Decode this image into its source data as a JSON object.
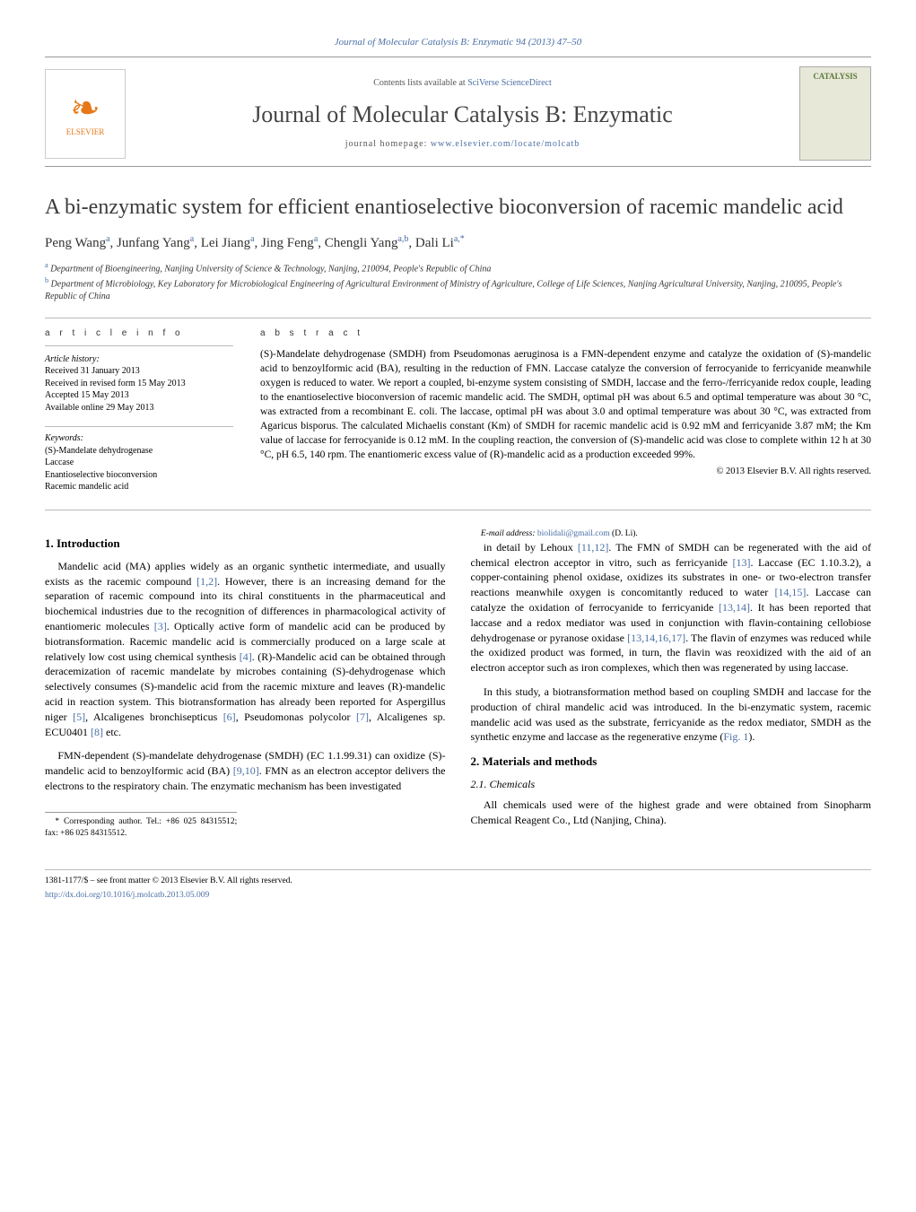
{
  "colors": {
    "link": "#4a6fa5",
    "elsevier_orange": "#e67817",
    "text": "#000000",
    "heading_gray": "#3a3a3a",
    "rule": "#bbbbbb"
  },
  "typography": {
    "body_font": "Georgia, 'Times New Roman', serif",
    "title_fontsize_pt": 18,
    "journal_name_fontsize_pt": 20,
    "body_fontsize_pt": 9,
    "abstract_fontsize_pt": 8.5
  },
  "header": {
    "citation": "Journal of Molecular Catalysis B: Enzymatic 94 (2013) 47–50",
    "contents_prefix": "Contents lists available at ",
    "contents_link": "SciVerse ScienceDirect",
    "journal_name": "Journal of Molecular Catalysis B: Enzymatic",
    "homepage_prefix": "journal homepage: ",
    "homepage_link": "www.elsevier.com/locate/molcatb",
    "publisher_logo_label": "ELSEVIER",
    "cover_label": "CATALYSIS"
  },
  "article": {
    "title": "A bi-enzymatic system for efficient enantioselective bioconversion of racemic mandelic acid",
    "authors_html": "Peng Wang<sup>a</sup>, Junfang Yang<sup>a</sup>, Lei Jiang<sup>a</sup>, Jing Feng<sup>a</sup>, Chengli Yang<sup>a,b</sup>, Dali Li<sup>a,*</sup>",
    "affiliations": [
      "a Department of Bioengineering, Nanjing University of Science & Technology, Nanjing, 210094, People's Republic of China",
      "b Department of Microbiology, Key Laboratory for Microbiological Engineering of Agricultural Environment of Ministry of Agriculture, College of Life Sciences, Nanjing Agricultural University, Nanjing, 210095, People's Republic of China"
    ]
  },
  "info": {
    "heading": "a r t i c l e   i n f o",
    "history_label": "Article history:",
    "history": [
      "Received 31 January 2013",
      "Received in revised form 15 May 2013",
      "Accepted 15 May 2013",
      "Available online 29 May 2013"
    ],
    "keywords_label": "Keywords:",
    "keywords": [
      "(S)-Mandelate dehydrogenase",
      "Laccase",
      "Enantioselective bioconversion",
      "Racemic mandelic acid"
    ]
  },
  "abstract": {
    "heading": "a b s t r a c t",
    "text": "(S)-Mandelate dehydrogenase (SMDH) from Pseudomonas aeruginosa is a FMN-dependent enzyme and catalyze the oxidation of (S)-mandelic acid to benzoylformic acid (BA), resulting in the reduction of FMN. Laccase catalyze the conversion of ferrocyanide to ferricyanide meanwhile oxygen is reduced to water. We report a coupled, bi-enzyme system consisting of SMDH, laccase and the ferro-/ferricyanide redox couple, leading to the enantioselective bioconversion of racemic mandelic acid. The SMDH, optimal pH was about 6.5 and optimal temperature was about 30 °C, was extracted from a recombinant E. coli. The laccase, optimal pH was about 3.0 and optimal temperature was about 30 °C, was extracted from Agaricus bisporus. The calculated Michaelis constant (Km) of SMDH for racemic mandelic acid is 0.92 mM and ferricyanide 3.87 mM; the Km value of laccase for ferrocyanide is 0.12 mM. In the coupling reaction, the conversion of (S)-mandelic acid was close to complete within 12 h at 30 °C, pH 6.5, 140 rpm. The enantiomeric excess value of (R)-mandelic acid as a production exceeded 99%.",
    "copyright": "© 2013 Elsevier B.V. All rights reserved."
  },
  "sections": {
    "intro_heading": "1. Introduction",
    "intro_p1": "Mandelic acid (MA) applies widely as an organic synthetic intermediate, and usually exists as the racemic compound [1,2]. However, there is an increasing demand for the separation of racemic compound into its chiral constituents in the pharmaceutical and biochemical industries due to the recognition of differences in pharmacological activity of enantiomeric molecules [3]. Optically active form of mandelic acid can be produced by biotransformation. Racemic mandelic acid is commercially produced on a large scale at relatively low cost using chemical synthesis [4]. (R)-Mandelic acid can be obtained through deracemization of racemic mandelate by microbes containing (S)-dehydrogenase which selectively consumes (S)-mandelic acid from the racemic mixture and leaves (R)-mandelic acid in reaction system. This biotransformation has already been reported for Aspergillus niger [5], Alcaligenes bronchisepticus [6], Pseudomonas polycolor [7], Alcaligenes sp. ECU0401 [8] etc.",
    "intro_p2": "FMN-dependent (S)-mandelate dehydrogenase (SMDH) (EC 1.1.99.31) can oxidize (S)-mandelic acid to benzoylformic acid (BA) [9,10]. FMN as an electron acceptor delivers the electrons to the respiratory chain. The enzymatic mechanism has been investigated",
    "intro_p3": "in detail by Lehoux [11,12]. The FMN of SMDH can be regenerated with the aid of chemical electron acceptor in vitro, such as ferricyanide [13]. Laccase (EC 1.10.3.2), a copper-containing phenol oxidase, oxidizes its substrates in one- or two-electron transfer reactions meanwhile oxygen is concomitantly reduced to water [14,15]. Laccase can catalyze the oxidation of ferrocyanide to ferricyanide [13,14]. It has been reported that laccase and a redox mediator was used in conjunction with flavin-containing cellobiose dehydrogenase or pyranose oxidase [13,14,16,17]. The flavin of enzymes was reduced while the oxidized product was formed, in turn, the flavin was reoxidized with the aid of an electron acceptor such as iron complexes, which then was regenerated by using laccase.",
    "intro_p4": "In this study, a biotransformation method based on coupling SMDH and laccase for the production of chiral mandelic acid was introduced. In the bi-enzymatic system, racemic mandelic acid was used as the substrate, ferricyanide as the redox mediator, SMDH as the synthetic enzyme and laccase as the regenerative enzyme (Fig. 1).",
    "methods_heading": "2. Materials and methods",
    "chemicals_heading": "2.1. Chemicals",
    "chemicals_p1": "All chemicals used were of the highest grade and were obtained from Sinopharm Chemical Reagent Co., Ltd (Nanjing, China)."
  },
  "footer": {
    "corr_label": "* Corresponding author. Tel.: +86 025 84315512; fax: +86 025 84315512.",
    "email_label": "E-mail address: ",
    "email": "biolidali@gmail.com",
    "email_suffix": " (D. Li).",
    "issn_line": "1381-1177/$ – see front matter © 2013 Elsevier B.V. All rights reserved.",
    "doi": "http://dx.doi.org/10.1016/j.molcatb.2013.05.009"
  }
}
